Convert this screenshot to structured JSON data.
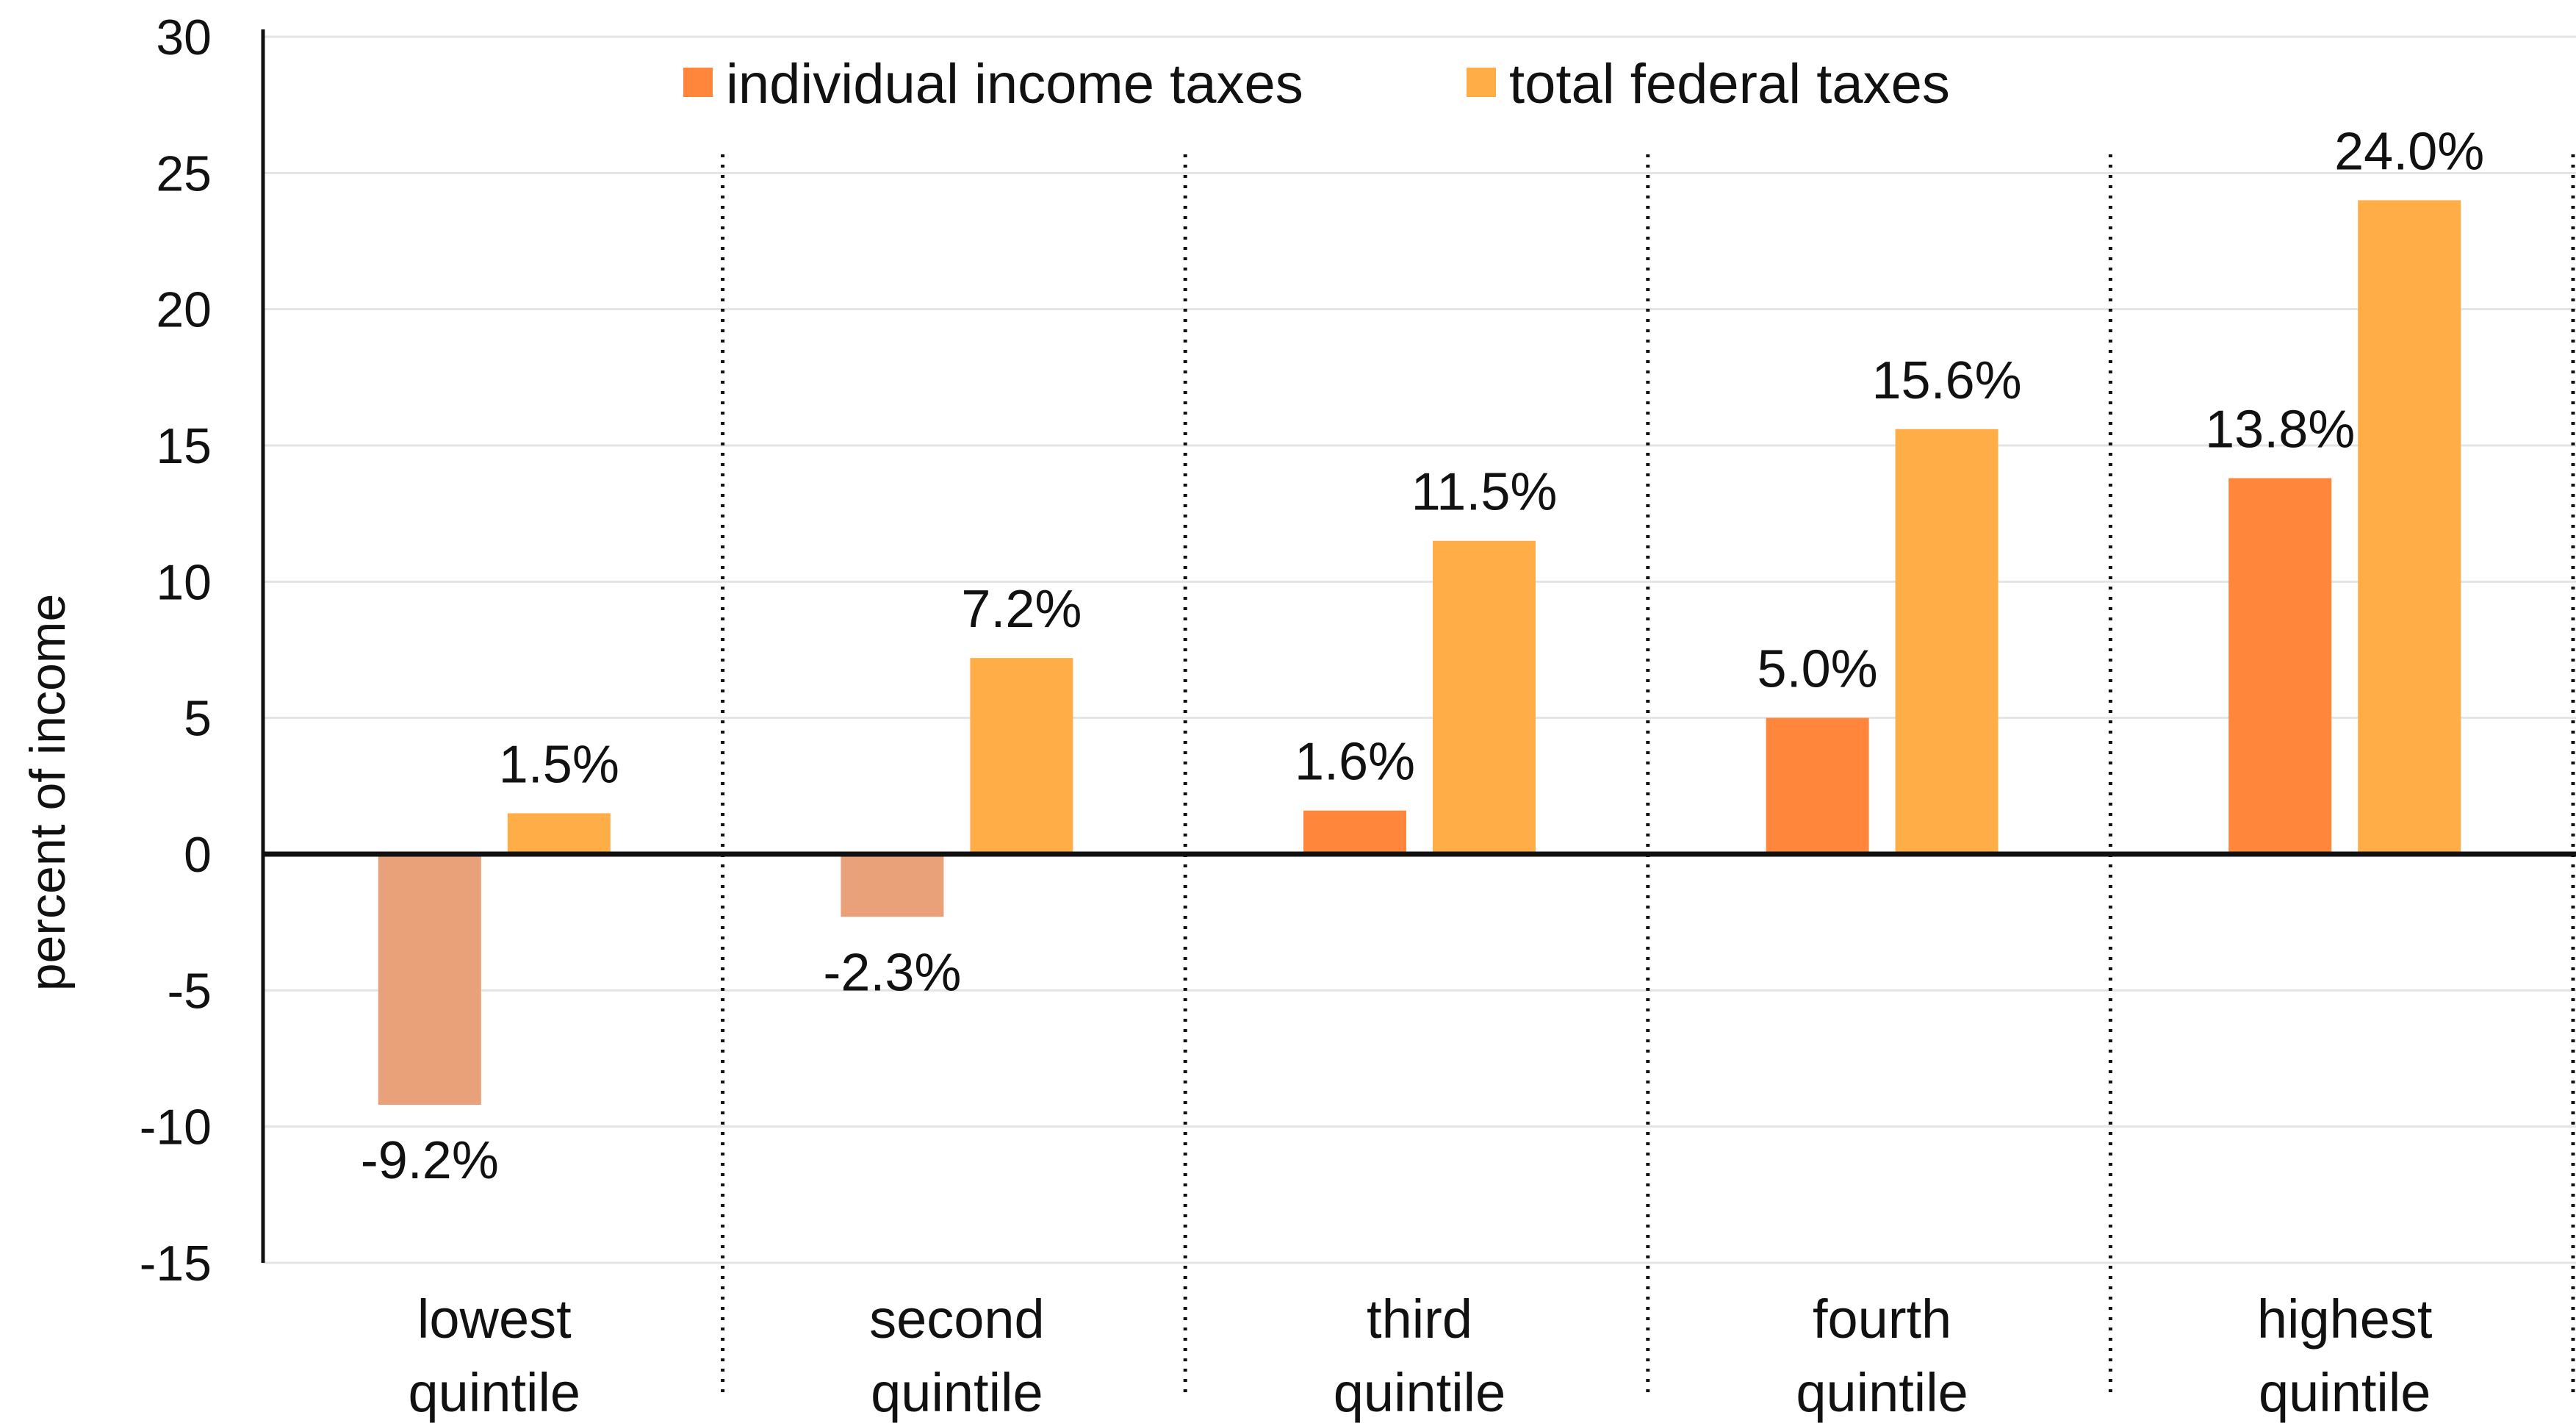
{
  "chart_data": {
    "type": "bar",
    "title": "",
    "xlabel": "",
    "ylabel": "percent of income",
    "ylim": [
      -15,
      30
    ],
    "yticks": [
      30,
      25,
      20,
      15,
      10,
      5,
      0,
      -5,
      -10,
      -15
    ],
    "grid": true,
    "legend_position": "top",
    "categories": [
      {
        "line1": "lowest",
        "line2": "quintile"
      },
      {
        "line1": "second",
        "line2": "quintile"
      },
      {
        "line1": "third",
        "line2": "quintile"
      },
      {
        "line1": "fourth",
        "line2": "quintile"
      },
      {
        "line1": "highest",
        "line2": "quintile"
      }
    ],
    "series": [
      {
        "name": "individual income taxes",
        "color": "#FF863A",
        "negative_color": "#E9A17A",
        "values": [
          -9.2,
          -2.3,
          1.6,
          5.0,
          13.8
        ],
        "labels": [
          "-9.2%",
          "-2.3%",
          "1.6%",
          "5.0%",
          "13.8%"
        ]
      },
      {
        "name": "total federal taxes",
        "color": "#FFAE47",
        "negative_color": "#FFAE47",
        "values": [
          1.5,
          7.2,
          11.5,
          15.6,
          24.0
        ],
        "labels": [
          "1.5%",
          "7.2%",
          "11.5%",
          "15.6%",
          "24.0%"
        ]
      }
    ]
  }
}
